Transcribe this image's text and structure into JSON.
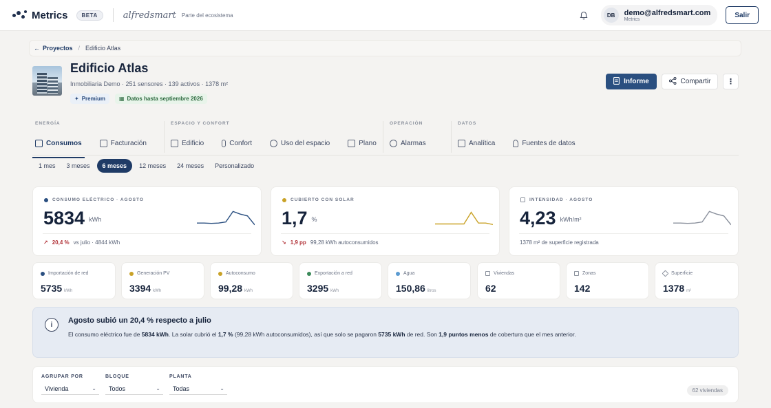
{
  "topbar": {
    "app_name": "Metrics",
    "beta": "BETA",
    "brand": "alfredsmart",
    "brand_tagline": "Parte del ecosistema",
    "user_initials": "DB",
    "user_email": "demo@alfredsmart.com",
    "user_org": "Metrics",
    "exit_label": "Salir"
  },
  "breadcrumb": {
    "back": "Proyectos",
    "sep": "/",
    "current": "Edificio Atlas"
  },
  "building": {
    "title": "Edificio Atlas",
    "subtitle": "Inmobiliaria Demo · 251 sensores · 139 activos · 1378 m²",
    "badge_premium": "Premium",
    "badge_data": "Datos hasta septiembre 2026"
  },
  "actions": {
    "report": "Informe",
    "share": "Compartir",
    "more": "⋮"
  },
  "nav": {
    "groups": [
      {
        "label": "ENERGÍA",
        "tabs": [
          "Consumos",
          "Facturación"
        ]
      },
      {
        "label": "ESPACIO Y CONFORT",
        "tabs": [
          "Edificio",
          "Confort",
          "Uso del espacio",
          "Plano"
        ]
      },
      {
        "label": "OPERACIÓN",
        "tabs": [
          "Alarmas"
        ]
      },
      {
        "label": "DATOS",
        "tabs": [
          "Analítica",
          "Fuentes de datos"
        ]
      }
    ],
    "active_tab": "Consumos"
  },
  "periods": [
    "1 mes",
    "3 meses",
    "6 meses",
    "12 meses",
    "24 meses",
    "Personalizado"
  ],
  "active_period": "6 meses",
  "kpis": [
    {
      "label": "CONSUMO ELÉCTRICO · AGOSTO",
      "value": "5834",
      "unit": "kWh",
      "delta": "20,4 %",
      "foot": "vs julio · 4844 kWh",
      "color": "#2a4f80",
      "spark": [
        0.3,
        0.3,
        0.28,
        0.3,
        0.36,
        0.95,
        0.8,
        0.7,
        0.2
      ]
    },
    {
      "label": "CUBIERTO CON SOLAR",
      "value": "1,7",
      "unit": "%",
      "delta": "1,9 pp",
      "foot": "99,28 kWh autoconsumidos",
      "color": "#c9a227",
      "spark": [
        0.25,
        0.25,
        0.25,
        0.25,
        0.25,
        0.9,
        0.3,
        0.3,
        0.22
      ]
    },
    {
      "label": "INTENSIDAD · AGOSTO",
      "value": "4,23",
      "unit": "kWh/m²",
      "delta": "",
      "foot": "1378 m² de superficie registrada",
      "color": "#8a909c",
      "spark": [
        0.3,
        0.3,
        0.28,
        0.3,
        0.36,
        0.95,
        0.8,
        0.7,
        0.2
      ]
    }
  ],
  "metrics": [
    {
      "label": "Importación de red",
      "value": "5735",
      "unit": "kWh",
      "color": "#2a4f80",
      "icon": "dot"
    },
    {
      "label": "Generación PV",
      "value": "3394",
      "unit": "kWh",
      "color": "#c9a227",
      "icon": "dot"
    },
    {
      "label": "Autoconsumo",
      "value": "99,28",
      "unit": "kWh",
      "color": "#c9a227",
      "icon": "dot"
    },
    {
      "label": "Exportación a red",
      "value": "3295",
      "unit": "kWh",
      "color": "#3b8a5a",
      "icon": "dot"
    },
    {
      "label": "Agua",
      "value": "150,86",
      "unit": "litros",
      "color": "#5b9bd1",
      "icon": "dot"
    },
    {
      "label": "Viviendas",
      "value": "62",
      "unit": "",
      "color": "#8a909c",
      "icon": "home-icon"
    },
    {
      "label": "Zonas",
      "value": "142",
      "unit": "",
      "color": "#8a909c",
      "icon": "grid-icon"
    },
    {
      "label": "Superficie",
      "value": "1378",
      "unit": "m²",
      "color": "#8a909c",
      "icon": "ruler-icon"
    }
  ],
  "insight": {
    "title": "Agosto subió un 20,4 % respecto a julio",
    "p1": "El consumo eléctrico fue de ",
    "b1": "5834 kWh",
    "p2": ". La solar cubrió el ",
    "b2": "1,7 %",
    "p3": " (99,28 kWh autoconsumidos), así que solo se pagaron ",
    "b3": "5735 kWh",
    "p4": " de red. Son ",
    "b4": "1,9 puntos menos",
    "p5": " de cobertura que el mes anterior."
  },
  "filters": {
    "group_label": "AGRUPAR POR",
    "group_value": "Vivienda",
    "block_label": "BLOQUE",
    "block_value": "Todos",
    "floor_label": "PLANTA",
    "floor_value": "Todas",
    "count": "62 viviendas"
  }
}
